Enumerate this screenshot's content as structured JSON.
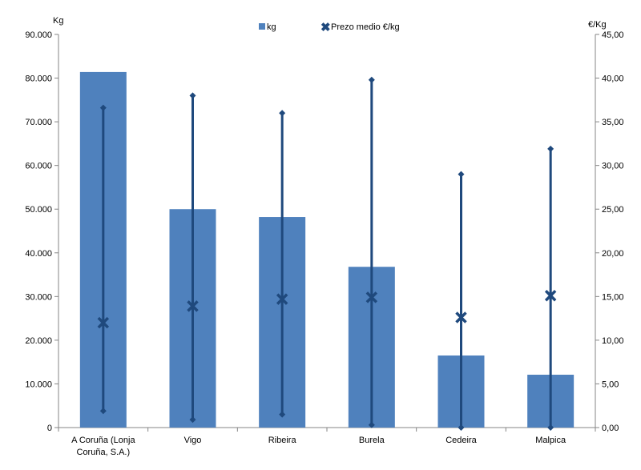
{
  "chart_data": {
    "type": "bar",
    "title": "",
    "categories": [
      "A Coruña (Lonja Coruña, S.A.)",
      "Vigo",
      "Ribeira",
      "Burela",
      "Cedeira",
      "Malpica"
    ],
    "category_lines": [
      [
        "A Coruña (Lonja",
        "Coruña, S.A.)"
      ],
      [
        "Vigo"
      ],
      [
        "Ribeira"
      ],
      [
        "Burela"
      ],
      [
        "Cedeira"
      ],
      [
        "Malpica"
      ]
    ],
    "series": [
      {
        "name": "kg",
        "axis": "left",
        "type": "bar",
        "color": "#4F81BD",
        "values": [
          81400,
          50000,
          48200,
          36800,
          16500,
          12100
        ]
      },
      {
        "name": "Prezo medio €/kg",
        "axis": "right",
        "type": "x-marker",
        "color": "#1F497D",
        "values": [
          12.0,
          13.9,
          14.7,
          14.9,
          12.6,
          15.1
        ],
        "high": [
          36.6,
          38.0,
          36.0,
          39.8,
          29.0,
          31.9
        ],
        "low": [
          1.9,
          0.9,
          1.5,
          0.3,
          0.0,
          0.0
        ]
      }
    ],
    "ylabel": "Kg",
    "y2label": "€/Kg",
    "ylim": [
      0,
      90000
    ],
    "y2lim": [
      0,
      45
    ],
    "yticks": [
      "0",
      "10.000",
      "20.000",
      "30.000",
      "40.000",
      "50.000",
      "60.000",
      "70.000",
      "80.000",
      "90.000"
    ],
    "y2ticks": [
      "0,00",
      "5,00",
      "10,00",
      "15,00",
      "20,00",
      "25,00",
      "30,00",
      "35,00",
      "40,00",
      "45,00"
    ],
    "grid": false,
    "legend": {
      "placement": "top-center",
      "items": [
        "kg",
        "Prezo medio €/kg"
      ]
    }
  }
}
